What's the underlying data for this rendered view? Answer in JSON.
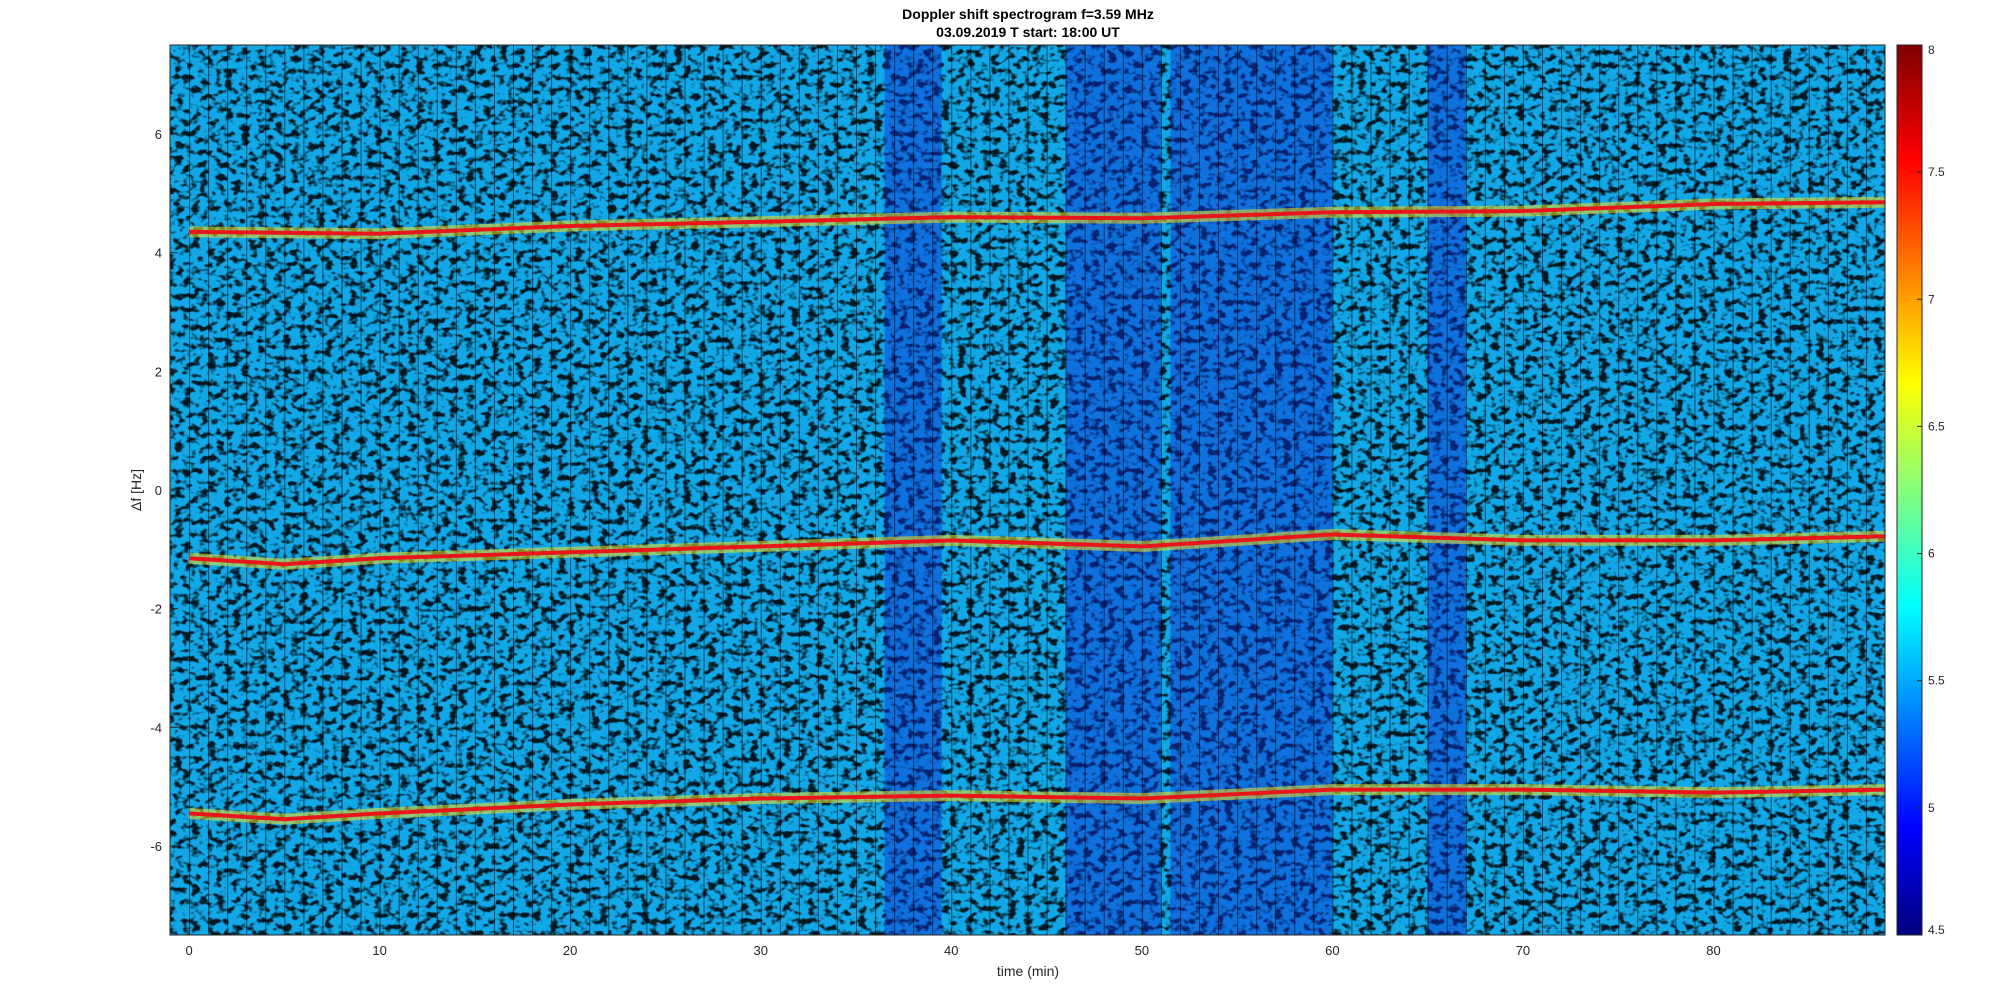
{
  "chart_data": {
    "type": "heatmap",
    "title_lines": [
      "Doppler shift spectrogram f=3.59 MHz",
      "03.09.2019    T start: 18:00 UT"
    ],
    "xlabel": "time (min)",
    "ylabel": "Δf [Hz]",
    "xlim": [
      -1,
      89
    ],
    "ylim": [
      -7.5,
      7.5
    ],
    "x_ticks": [
      0,
      10,
      20,
      30,
      40,
      50,
      60,
      70,
      80
    ],
    "y_ticks": [
      -6,
      -4,
      -2,
      0,
      2,
      4,
      6
    ],
    "colorbar": {
      "range": [
        4.5,
        8
      ],
      "ticks": [
        4.5,
        5,
        5.5,
        6,
        6.5,
        7,
        7.5,
        8
      ],
      "colormap": "jet"
    },
    "colors": {
      "background_low": "#0a2fd0",
      "background_mid": "#12a8e8",
      "trace_high": "#e8161a",
      "trace_edge": "#f5e21e"
    },
    "traces": [
      {
        "x": [
          0,
          10,
          20,
          30,
          40,
          50,
          60,
          70,
          80,
          89
        ],
        "y": [
          4.35,
          4.32,
          4.45,
          4.52,
          4.6,
          4.58,
          4.68,
          4.7,
          4.82,
          4.85
        ]
      },
      {
        "x": [
          0,
          5,
          10,
          20,
          30,
          40,
          50,
          60,
          70,
          80,
          89
        ],
        "y": [
          -1.15,
          -1.25,
          -1.15,
          -1.05,
          -0.95,
          -0.85,
          -0.95,
          -0.75,
          -0.85,
          -0.85,
          -0.78
        ]
      },
      {
        "x": [
          0,
          5,
          10,
          20,
          30,
          40,
          50,
          60,
          70,
          80,
          89
        ],
        "y": [
          -5.45,
          -5.55,
          -5.45,
          -5.3,
          -5.2,
          -5.15,
          -5.2,
          -5.05,
          -5.05,
          -5.1,
          -5.05
        ]
      }
    ],
    "dark_regions": [
      {
        "x0": 36.5,
        "x1": 39.5
      },
      {
        "x0": 46,
        "x1": 51
      },
      {
        "x0": 51.5,
        "x1": 60
      },
      {
        "x0": 65,
        "x1": 67
      }
    ]
  }
}
